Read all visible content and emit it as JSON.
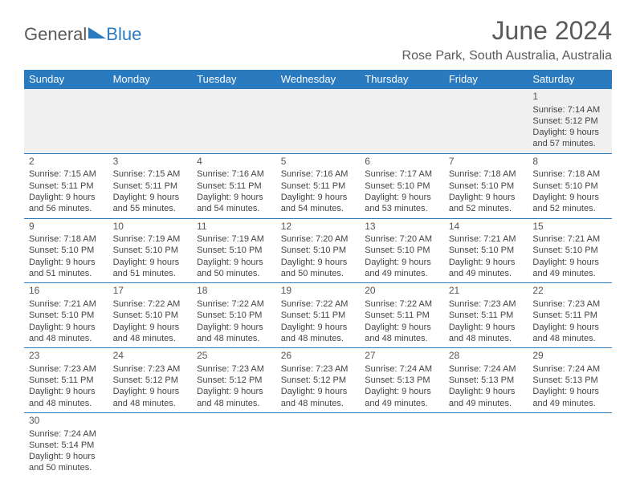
{
  "logo": {
    "general": "General",
    "blue": "Blue"
  },
  "header": {
    "month_title": "June 2024",
    "location": "Rose Park, South Australia, Australia"
  },
  "colors": {
    "header_bg": "#2a7ac0",
    "header_fg": "#ffffff",
    "row1_bg": "#f0f0f0",
    "border": "#2a7ac0",
    "text": "#444444"
  },
  "day_headers": [
    "Sunday",
    "Monday",
    "Tuesday",
    "Wednesday",
    "Thursday",
    "Friday",
    "Saturday"
  ],
  "weeks": [
    [
      null,
      null,
      null,
      null,
      null,
      null,
      {
        "n": "1",
        "sr": "Sunrise: 7:14 AM",
        "ss": "Sunset: 5:12 PM",
        "dl": "Daylight: 9 hours and 57 minutes."
      }
    ],
    [
      {
        "n": "2",
        "sr": "Sunrise: 7:15 AM",
        "ss": "Sunset: 5:11 PM",
        "dl": "Daylight: 9 hours and 56 minutes."
      },
      {
        "n": "3",
        "sr": "Sunrise: 7:15 AM",
        "ss": "Sunset: 5:11 PM",
        "dl": "Daylight: 9 hours and 55 minutes."
      },
      {
        "n": "4",
        "sr": "Sunrise: 7:16 AM",
        "ss": "Sunset: 5:11 PM",
        "dl": "Daylight: 9 hours and 54 minutes."
      },
      {
        "n": "5",
        "sr": "Sunrise: 7:16 AM",
        "ss": "Sunset: 5:11 PM",
        "dl": "Daylight: 9 hours and 54 minutes."
      },
      {
        "n": "6",
        "sr": "Sunrise: 7:17 AM",
        "ss": "Sunset: 5:10 PM",
        "dl": "Daylight: 9 hours and 53 minutes."
      },
      {
        "n": "7",
        "sr": "Sunrise: 7:18 AM",
        "ss": "Sunset: 5:10 PM",
        "dl": "Daylight: 9 hours and 52 minutes."
      },
      {
        "n": "8",
        "sr": "Sunrise: 7:18 AM",
        "ss": "Sunset: 5:10 PM",
        "dl": "Daylight: 9 hours and 52 minutes."
      }
    ],
    [
      {
        "n": "9",
        "sr": "Sunrise: 7:18 AM",
        "ss": "Sunset: 5:10 PM",
        "dl": "Daylight: 9 hours and 51 minutes."
      },
      {
        "n": "10",
        "sr": "Sunrise: 7:19 AM",
        "ss": "Sunset: 5:10 PM",
        "dl": "Daylight: 9 hours and 51 minutes."
      },
      {
        "n": "11",
        "sr": "Sunrise: 7:19 AM",
        "ss": "Sunset: 5:10 PM",
        "dl": "Daylight: 9 hours and 50 minutes."
      },
      {
        "n": "12",
        "sr": "Sunrise: 7:20 AM",
        "ss": "Sunset: 5:10 PM",
        "dl": "Daylight: 9 hours and 50 minutes."
      },
      {
        "n": "13",
        "sr": "Sunrise: 7:20 AM",
        "ss": "Sunset: 5:10 PM",
        "dl": "Daylight: 9 hours and 49 minutes."
      },
      {
        "n": "14",
        "sr": "Sunrise: 7:21 AM",
        "ss": "Sunset: 5:10 PM",
        "dl": "Daylight: 9 hours and 49 minutes."
      },
      {
        "n": "15",
        "sr": "Sunrise: 7:21 AM",
        "ss": "Sunset: 5:10 PM",
        "dl": "Daylight: 9 hours and 49 minutes."
      }
    ],
    [
      {
        "n": "16",
        "sr": "Sunrise: 7:21 AM",
        "ss": "Sunset: 5:10 PM",
        "dl": "Daylight: 9 hours and 48 minutes."
      },
      {
        "n": "17",
        "sr": "Sunrise: 7:22 AM",
        "ss": "Sunset: 5:10 PM",
        "dl": "Daylight: 9 hours and 48 minutes."
      },
      {
        "n": "18",
        "sr": "Sunrise: 7:22 AM",
        "ss": "Sunset: 5:10 PM",
        "dl": "Daylight: 9 hours and 48 minutes."
      },
      {
        "n": "19",
        "sr": "Sunrise: 7:22 AM",
        "ss": "Sunset: 5:11 PM",
        "dl": "Daylight: 9 hours and 48 minutes."
      },
      {
        "n": "20",
        "sr": "Sunrise: 7:22 AM",
        "ss": "Sunset: 5:11 PM",
        "dl": "Daylight: 9 hours and 48 minutes."
      },
      {
        "n": "21",
        "sr": "Sunrise: 7:23 AM",
        "ss": "Sunset: 5:11 PM",
        "dl": "Daylight: 9 hours and 48 minutes."
      },
      {
        "n": "22",
        "sr": "Sunrise: 7:23 AM",
        "ss": "Sunset: 5:11 PM",
        "dl": "Daylight: 9 hours and 48 minutes."
      }
    ],
    [
      {
        "n": "23",
        "sr": "Sunrise: 7:23 AM",
        "ss": "Sunset: 5:11 PM",
        "dl": "Daylight: 9 hours and 48 minutes."
      },
      {
        "n": "24",
        "sr": "Sunrise: 7:23 AM",
        "ss": "Sunset: 5:12 PM",
        "dl": "Daylight: 9 hours and 48 minutes."
      },
      {
        "n": "25",
        "sr": "Sunrise: 7:23 AM",
        "ss": "Sunset: 5:12 PM",
        "dl": "Daylight: 9 hours and 48 minutes."
      },
      {
        "n": "26",
        "sr": "Sunrise: 7:23 AM",
        "ss": "Sunset: 5:12 PM",
        "dl": "Daylight: 9 hours and 48 minutes."
      },
      {
        "n": "27",
        "sr": "Sunrise: 7:24 AM",
        "ss": "Sunset: 5:13 PM",
        "dl": "Daylight: 9 hours and 49 minutes."
      },
      {
        "n": "28",
        "sr": "Sunrise: 7:24 AM",
        "ss": "Sunset: 5:13 PM",
        "dl": "Daylight: 9 hours and 49 minutes."
      },
      {
        "n": "29",
        "sr": "Sunrise: 7:24 AM",
        "ss": "Sunset: 5:13 PM",
        "dl": "Daylight: 9 hours and 49 minutes."
      }
    ],
    [
      {
        "n": "30",
        "sr": "Sunrise: 7:24 AM",
        "ss": "Sunset: 5:14 PM",
        "dl": "Daylight: 9 hours and 50 minutes."
      },
      null,
      null,
      null,
      null,
      null,
      null
    ]
  ]
}
